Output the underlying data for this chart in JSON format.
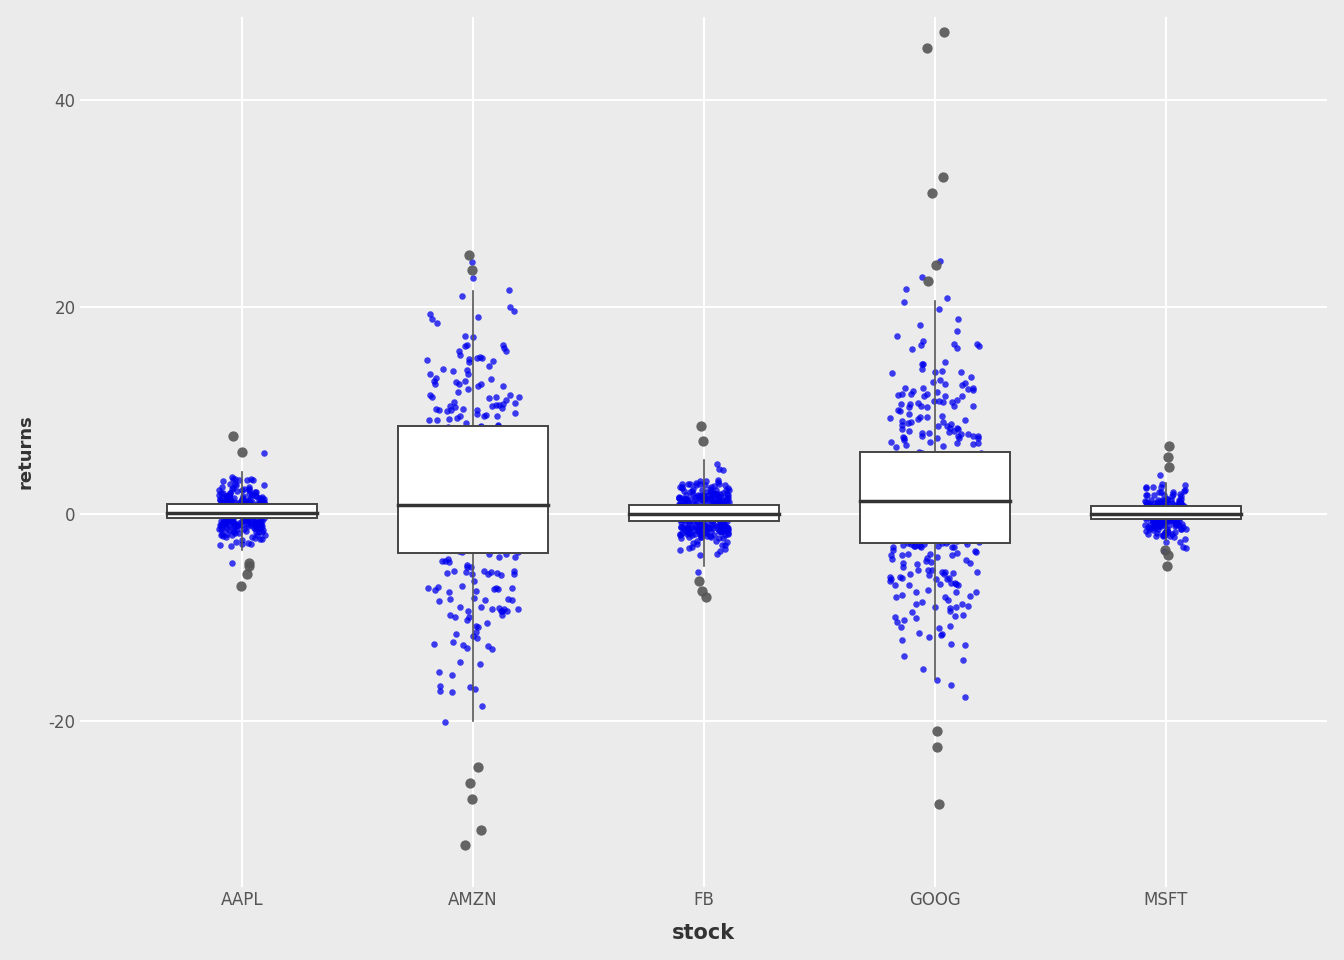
{
  "stocks": [
    "AAPL",
    "AMZN",
    "FB",
    "GOOG",
    "MSFT"
  ],
  "background_color": "#EBEBEB",
  "grid_color": "#FFFFFF",
  "box_facecolor": "#FFFFFF",
  "box_edgecolor": "#444444",
  "median_color": "#333333",
  "whisker_color": "#555555",
  "outlier_color": "#555555",
  "jitter_color": "#0000EE",
  "xlabel": "stock",
  "ylabel": "returns",
  "ylim": [
    -36,
    48
  ],
  "yticks": [
    -20,
    0,
    20,
    40
  ],
  "xlabel_fontsize": 15,
  "ylabel_fontsize": 13,
  "tick_fontsize": 12,
  "box_width": 0.65,
  "jitter_alpha": 0.75,
  "jitter_size": 22,
  "outlier_size": 55,
  "seed": 42,
  "stocks_data": {
    "AAPL": {
      "q1": -0.4,
      "median": 0.05,
      "q3": 0.9,
      "whisker_lo": -3.5,
      "whisker_hi": 4.0,
      "n_jitter": 260,
      "jitter_mean": 0.1,
      "jitter_std": 1.5,
      "jitter_spread": 0.1,
      "outlier_vals": [
        -5.0,
        -5.8,
        -7.0,
        6.0,
        7.5,
        -4.8
      ]
    },
    "AMZN": {
      "q1": -3.8,
      "median": 0.8,
      "q3": 8.5,
      "whisker_lo": -20.0,
      "whisker_hi": 21.5,
      "n_jitter": 320,
      "jitter_mean": 1.5,
      "jitter_std": 8.5,
      "jitter_spread": 0.2,
      "outlier_vals": [
        -24.5,
        -26.0,
        -27.5,
        -30.5,
        -32.0,
        23.5,
        25.0
      ]
    },
    "FB": {
      "q1": -0.7,
      "median": -0.05,
      "q3": 0.8,
      "whisker_lo": -5.0,
      "whisker_hi": 5.2,
      "n_jitter": 290,
      "jitter_mean": 0.0,
      "jitter_std": 1.8,
      "jitter_spread": 0.11,
      "outlier_vals": [
        -6.5,
        -7.5,
        -8.0,
        7.0,
        8.5
      ]
    },
    "GOOG": {
      "q1": -2.8,
      "median": 1.2,
      "q3": 6.0,
      "whisker_lo": -16.0,
      "whisker_hi": 20.5,
      "n_jitter": 360,
      "jitter_mean": 1.5,
      "jitter_std": 7.5,
      "jitter_spread": 0.2,
      "outlier_vals": [
        31.0,
        32.5,
        45.0,
        46.5,
        -21.0,
        -22.5,
        -28.0,
        22.5,
        24.0
      ]
    },
    "MSFT": {
      "q1": -0.5,
      "median": 0.0,
      "q3": 0.75,
      "whisker_lo": -2.5,
      "whisker_hi": 3.0,
      "n_jitter": 230,
      "jitter_mean": 0.0,
      "jitter_std": 1.3,
      "jitter_spread": 0.09,
      "outlier_vals": [
        -3.5,
        -4.0,
        -5.0,
        4.5,
        5.5,
        6.5
      ]
    }
  }
}
